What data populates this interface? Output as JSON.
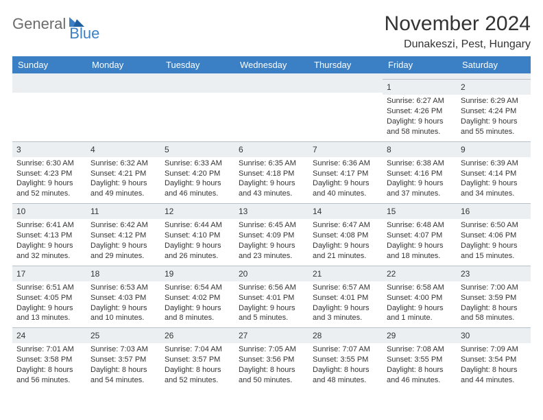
{
  "brand": {
    "general": "General",
    "blue": "Blue"
  },
  "title": "November 2024",
  "location": "Dunakeszi, Pest, Hungary",
  "colors": {
    "header_bg": "#3b7fc4",
    "header_text": "#ffffff",
    "daynum_bg": "#eceff1",
    "daynum_border": "#b8c0c8",
    "body_text": "#333333",
    "page_bg": "#ffffff",
    "logo_gray": "#6b6b6b",
    "logo_blue": "#3b7fc4"
  },
  "weekdays": [
    "Sunday",
    "Monday",
    "Tuesday",
    "Wednesday",
    "Thursday",
    "Friday",
    "Saturday"
  ],
  "weeks": [
    [
      null,
      null,
      null,
      null,
      null,
      {
        "n": "1",
        "sr": "6:27 AM",
        "ss": "4:26 PM",
        "dl": "9 hours and 58 minutes."
      },
      {
        "n": "2",
        "sr": "6:29 AM",
        "ss": "4:24 PM",
        "dl": "9 hours and 55 minutes."
      }
    ],
    [
      {
        "n": "3",
        "sr": "6:30 AM",
        "ss": "4:23 PM",
        "dl": "9 hours and 52 minutes."
      },
      {
        "n": "4",
        "sr": "6:32 AM",
        "ss": "4:21 PM",
        "dl": "9 hours and 49 minutes."
      },
      {
        "n": "5",
        "sr": "6:33 AM",
        "ss": "4:20 PM",
        "dl": "9 hours and 46 minutes."
      },
      {
        "n": "6",
        "sr": "6:35 AM",
        "ss": "4:18 PM",
        "dl": "9 hours and 43 minutes."
      },
      {
        "n": "7",
        "sr": "6:36 AM",
        "ss": "4:17 PM",
        "dl": "9 hours and 40 minutes."
      },
      {
        "n": "8",
        "sr": "6:38 AM",
        "ss": "4:16 PM",
        "dl": "9 hours and 37 minutes."
      },
      {
        "n": "9",
        "sr": "6:39 AM",
        "ss": "4:14 PM",
        "dl": "9 hours and 34 minutes."
      }
    ],
    [
      {
        "n": "10",
        "sr": "6:41 AM",
        "ss": "4:13 PM",
        "dl": "9 hours and 32 minutes."
      },
      {
        "n": "11",
        "sr": "6:42 AM",
        "ss": "4:12 PM",
        "dl": "9 hours and 29 minutes."
      },
      {
        "n": "12",
        "sr": "6:44 AM",
        "ss": "4:10 PM",
        "dl": "9 hours and 26 minutes."
      },
      {
        "n": "13",
        "sr": "6:45 AM",
        "ss": "4:09 PM",
        "dl": "9 hours and 23 minutes."
      },
      {
        "n": "14",
        "sr": "6:47 AM",
        "ss": "4:08 PM",
        "dl": "9 hours and 21 minutes."
      },
      {
        "n": "15",
        "sr": "6:48 AM",
        "ss": "4:07 PM",
        "dl": "9 hours and 18 minutes."
      },
      {
        "n": "16",
        "sr": "6:50 AM",
        "ss": "4:06 PM",
        "dl": "9 hours and 15 minutes."
      }
    ],
    [
      {
        "n": "17",
        "sr": "6:51 AM",
        "ss": "4:05 PM",
        "dl": "9 hours and 13 minutes."
      },
      {
        "n": "18",
        "sr": "6:53 AM",
        "ss": "4:03 PM",
        "dl": "9 hours and 10 minutes."
      },
      {
        "n": "19",
        "sr": "6:54 AM",
        "ss": "4:02 PM",
        "dl": "9 hours and 8 minutes."
      },
      {
        "n": "20",
        "sr": "6:56 AM",
        "ss": "4:01 PM",
        "dl": "9 hours and 5 minutes."
      },
      {
        "n": "21",
        "sr": "6:57 AM",
        "ss": "4:01 PM",
        "dl": "9 hours and 3 minutes."
      },
      {
        "n": "22",
        "sr": "6:58 AM",
        "ss": "4:00 PM",
        "dl": "9 hours and 1 minute."
      },
      {
        "n": "23",
        "sr": "7:00 AM",
        "ss": "3:59 PM",
        "dl": "8 hours and 58 minutes."
      }
    ],
    [
      {
        "n": "24",
        "sr": "7:01 AM",
        "ss": "3:58 PM",
        "dl": "8 hours and 56 minutes."
      },
      {
        "n": "25",
        "sr": "7:03 AM",
        "ss": "3:57 PM",
        "dl": "8 hours and 54 minutes."
      },
      {
        "n": "26",
        "sr": "7:04 AM",
        "ss": "3:57 PM",
        "dl": "8 hours and 52 minutes."
      },
      {
        "n": "27",
        "sr": "7:05 AM",
        "ss": "3:56 PM",
        "dl": "8 hours and 50 minutes."
      },
      {
        "n": "28",
        "sr": "7:07 AM",
        "ss": "3:55 PM",
        "dl": "8 hours and 48 minutes."
      },
      {
        "n": "29",
        "sr": "7:08 AM",
        "ss": "3:55 PM",
        "dl": "8 hours and 46 minutes."
      },
      {
        "n": "30",
        "sr": "7:09 AM",
        "ss": "3:54 PM",
        "dl": "8 hours and 44 minutes."
      }
    ]
  ],
  "labels": {
    "sunrise": "Sunrise: ",
    "sunset": "Sunset: ",
    "daylight": "Daylight: "
  }
}
